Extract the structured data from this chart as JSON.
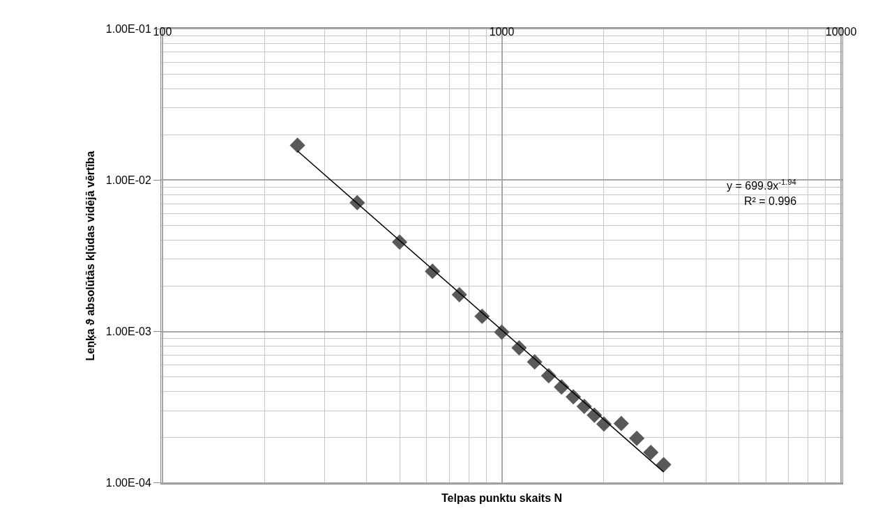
{
  "chart_data": {
    "type": "scatter",
    "xlabel": "Telpas punktu skaits N",
    "ylabel": "Leņķa ϑ absolūtās kļūdas vidējā vērtība",
    "log": "xy",
    "grid": true,
    "marker": "diamond",
    "xlim": [
      100,
      10000
    ],
    "xticks": [
      100,
      1000,
      10000
    ],
    "ylim": [
      0.0001,
      0.1
    ],
    "yticks": [
      {
        "value": 0.1,
        "label": "1.00E-01"
      },
      {
        "value": 0.01,
        "label": "1.00E-02"
      },
      {
        "value": 0.001,
        "label": "1.00E-03"
      },
      {
        "value": 0.0001,
        "label": "1.00E-04"
      }
    ],
    "x": [
      250,
      375,
      500,
      625,
      750,
      875,
      1000,
      1125,
      1250,
      1375,
      1500,
      1625,
      1750,
      1875,
      2000,
      2250,
      2500,
      2750,
      3000
    ],
    "series": [
      {
        "color": "#595959",
        "values": [
          0.017,
          0.0071,
          0.0039,
          0.0025,
          0.00175,
          0.00126,
          0.00099,
          0.00078,
          0.00063,
          0.00051,
          0.00043,
          0.00037,
          0.00032,
          0.00028,
          0.000245,
          0.000247,
          0.000197,
          0.000159,
          0.000132
        ]
      },
      {
        "type": "line",
        "color": "#000000",
        "marker": "none",
        "line_style": "solid",
        "x": [
          250,
          3000
        ],
        "values": [
          0.0156,
          0.000118
        ]
      }
    ],
    "annotations": [
      "y = 699.9x$^{-1.94}$",
      "R² = 0.996"
    ]
  }
}
